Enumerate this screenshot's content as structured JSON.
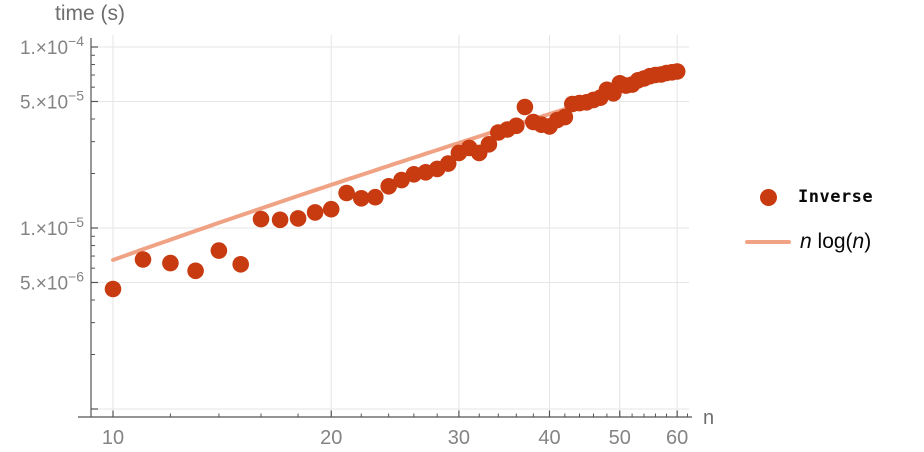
{
  "chart_data": {
    "type": "scatter",
    "title": "",
    "xlabel": "n",
    "ylabel": "time (s)",
    "x_scale": "log",
    "y_scale": "log",
    "xlim": [
      9.3,
      63
    ],
    "ylim": [
      9.3e-07,
      0.000116
    ],
    "grid": true,
    "legend_position": "right-outside",
    "axes": {
      "x_major_ticks": [
        10,
        20,
        30,
        40,
        50,
        60
      ],
      "x_minor_ticks": [
        12,
        14,
        16,
        18,
        22,
        24,
        26,
        28,
        32,
        34,
        36,
        38,
        42,
        44,
        46,
        48,
        52,
        54,
        56,
        58,
        62
      ],
      "x_tick_labels": [
        "10",
        "20",
        "30",
        "40",
        "50",
        "60"
      ],
      "y_labeled_ticks": [
        {
          "value": 0.0001,
          "mantissa": "1.",
          "times": "×10",
          "exp": "−4"
        },
        {
          "value": 5e-05,
          "mantissa": "5.",
          "times": "×10",
          "exp": "−5"
        },
        {
          "value": 1e-05,
          "mantissa": "1.",
          "times": "×10",
          "exp": "−5"
        },
        {
          "value": 5e-06,
          "mantissa": "5.",
          "times": "×10",
          "exp": "−6"
        }
      ],
      "y_unlabeled_major_ticks": [
        1e-06
      ],
      "y_minor_mantissas": [
        2,
        3,
        4,
        6,
        7,
        8,
        9
      ],
      "y_minor_decades": [
        1e-06,
        1e-05
      ],
      "x_gridlines": [
        10,
        20,
        30,
        40,
        50,
        60
      ],
      "y_gridlines": [
        0.0001,
        5e-05,
        1e-05,
        5e-06,
        1e-06
      ]
    },
    "series": [
      {
        "name": "Inverse",
        "type": "points",
        "marker": "circle",
        "color": "#C83A0F",
        "points": [
          [
            10,
            4.6e-06
          ],
          [
            11,
            6.7e-06
          ],
          [
            12,
            6.4e-06
          ],
          [
            13,
            5.8e-06
          ],
          [
            14,
            7.5e-06
          ],
          [
            15,
            6.3e-06
          ],
          [
            16,
            1.12e-05
          ],
          [
            17,
            1.11e-05
          ],
          [
            18,
            1.13e-05
          ],
          [
            19,
            1.22e-05
          ],
          [
            20,
            1.27e-05
          ],
          [
            21,
            1.56e-05
          ],
          [
            22,
            1.46e-05
          ],
          [
            23,
            1.48e-05
          ],
          [
            24,
            1.7e-05
          ],
          [
            25,
            1.84e-05
          ],
          [
            26,
            1.98e-05
          ],
          [
            27,
            2.03e-05
          ],
          [
            28,
            2.12e-05
          ],
          [
            29,
            2.27e-05
          ],
          [
            30,
            2.6e-05
          ],
          [
            31,
            2.77e-05
          ],
          [
            32,
            2.6e-05
          ],
          [
            33,
            2.9e-05
          ],
          [
            34,
            3.37e-05
          ],
          [
            35,
            3.5e-05
          ],
          [
            36,
            3.67e-05
          ],
          [
            37,
            4.66e-05
          ],
          [
            38,
            3.85e-05
          ],
          [
            39,
            3.72e-05
          ],
          [
            40,
            3.64e-05
          ],
          [
            41,
            3.95e-05
          ],
          [
            42,
            4.1e-05
          ],
          [
            43,
            4.84e-05
          ],
          [
            44,
            4.9e-05
          ],
          [
            45,
            4.95e-05
          ],
          [
            46,
            5.1e-05
          ],
          [
            47,
            5.25e-05
          ],
          [
            48,
            5.8e-05
          ],
          [
            49,
            5.55e-05
          ],
          [
            50,
            6.3e-05
          ],
          [
            51,
            6.12e-05
          ],
          [
            52,
            6.2e-05
          ],
          [
            53,
            6.55e-05
          ],
          [
            54,
            6.7e-05
          ],
          [
            55,
            6.9e-05
          ],
          [
            56,
            7e-05
          ],
          [
            57,
            7.05e-05
          ],
          [
            58,
            7.18e-05
          ],
          [
            59,
            7.25e-05
          ],
          [
            60,
            7.32e-05
          ]
        ]
      },
      {
        "name": "n log(n)",
        "type": "line",
        "color": "#F0A284",
        "formula": "c * n * ln(n)",
        "c": 2.89e-07,
        "n_range": [
          10,
          60
        ]
      }
    ],
    "legend": {
      "items": [
        {
          "label": "Inverse",
          "marker": "dot",
          "color": "#C83A0F"
        },
        {
          "label": "n log(n)",
          "label_parts": [
            {
              "t": "n",
              "i": true
            },
            {
              "t": " log(",
              "i": false
            },
            {
              "t": "n",
              "i": true
            },
            {
              "t": ")",
              "i": false
            }
          ],
          "marker": "line",
          "color": "#F0A284"
        }
      ]
    }
  },
  "colors": {
    "points": "#C83A0F",
    "line": "#F0A284",
    "grid": "#E6E6E6",
    "axis": "#545454",
    "tick_label": "#848484",
    "axis_label": "#6E6E6E",
    "legend_text": "#090909",
    "background": "#FFFFFF"
  }
}
